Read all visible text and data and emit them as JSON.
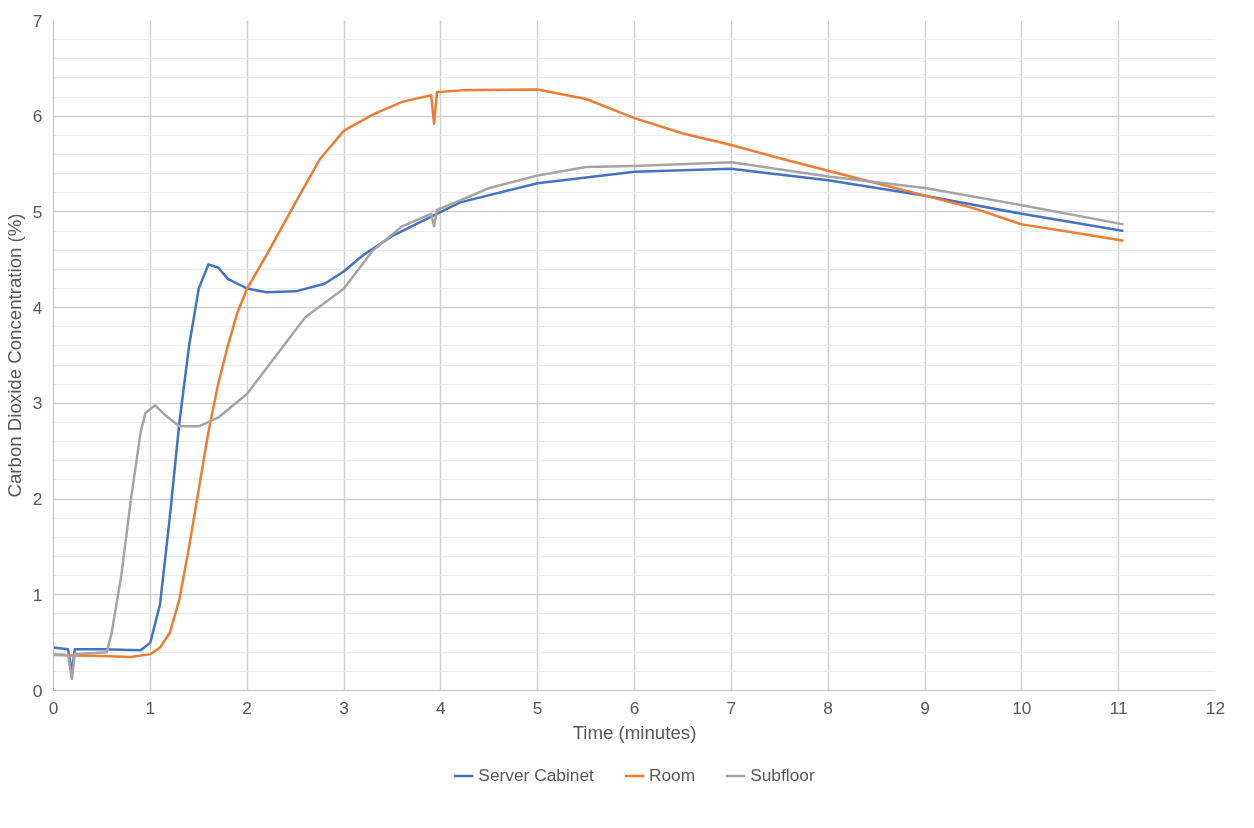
{
  "chart_data": {
    "type": "line",
    "xlabel": "Time (minutes)",
    "ylabel": "Carbon Dioxide Concentration (%)",
    "xlim": [
      0,
      12
    ],
    "xticks": [
      0,
      1,
      2,
      3,
      4,
      5,
      6,
      7,
      8,
      9,
      10,
      11,
      12
    ],
    "ylim": [
      0,
      7
    ],
    "yticks": [
      0,
      1,
      2,
      3,
      4,
      5,
      6,
      7
    ],
    "grid": true,
    "legend": "bottom",
    "marker": "none",
    "line_style": "solid",
    "series": [
      {
        "name": "Server Cabinet",
        "color": "#4472c4",
        "x": [
          0,
          0.15,
          0.19,
          0.22,
          0.5,
          0.9,
          1.0,
          1.1,
          1.2,
          1.3,
          1.4,
          1.5,
          1.6,
          1.7,
          1.8,
          2.0,
          2.2,
          2.5,
          2.8,
          3.0,
          3.2,
          3.5,
          4.0,
          4.2,
          5.0,
          6.0,
          7.0,
          8.0,
          9.0,
          10.0,
          11.05
        ],
        "values": [
          0.45,
          0.43,
          0.2,
          0.43,
          0.43,
          0.42,
          0.5,
          0.9,
          1.8,
          2.8,
          3.6,
          4.2,
          4.45,
          4.42,
          4.3,
          4.2,
          4.16,
          4.17,
          4.25,
          4.38,
          4.55,
          4.75,
          5.0,
          5.1,
          5.3,
          5.42,
          5.45,
          5.33,
          5.17,
          4.98,
          4.8
        ]
      },
      {
        "name": "Room",
        "color": "#ed7d31",
        "x": [
          0,
          0.5,
          0.8,
          1.0,
          1.1,
          1.2,
          1.3,
          1.4,
          1.5,
          1.6,
          1.7,
          1.8,
          1.9,
          2.0,
          2.2,
          2.5,
          2.75,
          3.0,
          3.3,
          3.6,
          3.9,
          3.93,
          3.96,
          4.2,
          5.0,
          5.5,
          6.0,
          6.5,
          7.0,
          7.5,
          8.0,
          8.5,
          9.0,
          9.5,
          10.0,
          10.5,
          11.05
        ],
        "values": [
          0.37,
          0.36,
          0.35,
          0.38,
          0.45,
          0.6,
          0.95,
          1.5,
          2.1,
          2.7,
          3.2,
          3.6,
          3.95,
          4.2,
          4.55,
          5.1,
          5.55,
          5.85,
          6.02,
          6.15,
          6.22,
          5.92,
          6.25,
          6.27,
          6.28,
          6.18,
          5.98,
          5.82,
          5.7,
          5.56,
          5.43,
          5.3,
          5.17,
          5.04,
          4.87,
          4.79,
          4.7
        ]
      },
      {
        "name": "Subfloor",
        "color": "#a5a5a5",
        "x": [
          0,
          0.15,
          0.19,
          0.22,
          0.55,
          0.6,
          0.7,
          0.8,
          0.9,
          0.95,
          1.05,
          1.15,
          1.3,
          1.5,
          1.7,
          2.0,
          2.3,
          2.6,
          3.0,
          3.3,
          3.6,
          3.9,
          3.93,
          3.96,
          4.2,
          4.5,
          5.0,
          5.5,
          6.0,
          7.0,
          8.0,
          9.0,
          10.0,
          11.05
        ],
        "values": [
          0.38,
          0.37,
          0.12,
          0.38,
          0.4,
          0.6,
          1.2,
          2.0,
          2.7,
          2.9,
          2.98,
          2.88,
          2.76,
          2.76,
          2.85,
          3.1,
          3.5,
          3.9,
          4.2,
          4.6,
          4.85,
          4.98,
          4.85,
          5.02,
          5.12,
          5.25,
          5.38,
          5.47,
          5.48,
          5.52,
          5.37,
          5.25,
          5.07,
          4.87
        ]
      }
    ]
  }
}
